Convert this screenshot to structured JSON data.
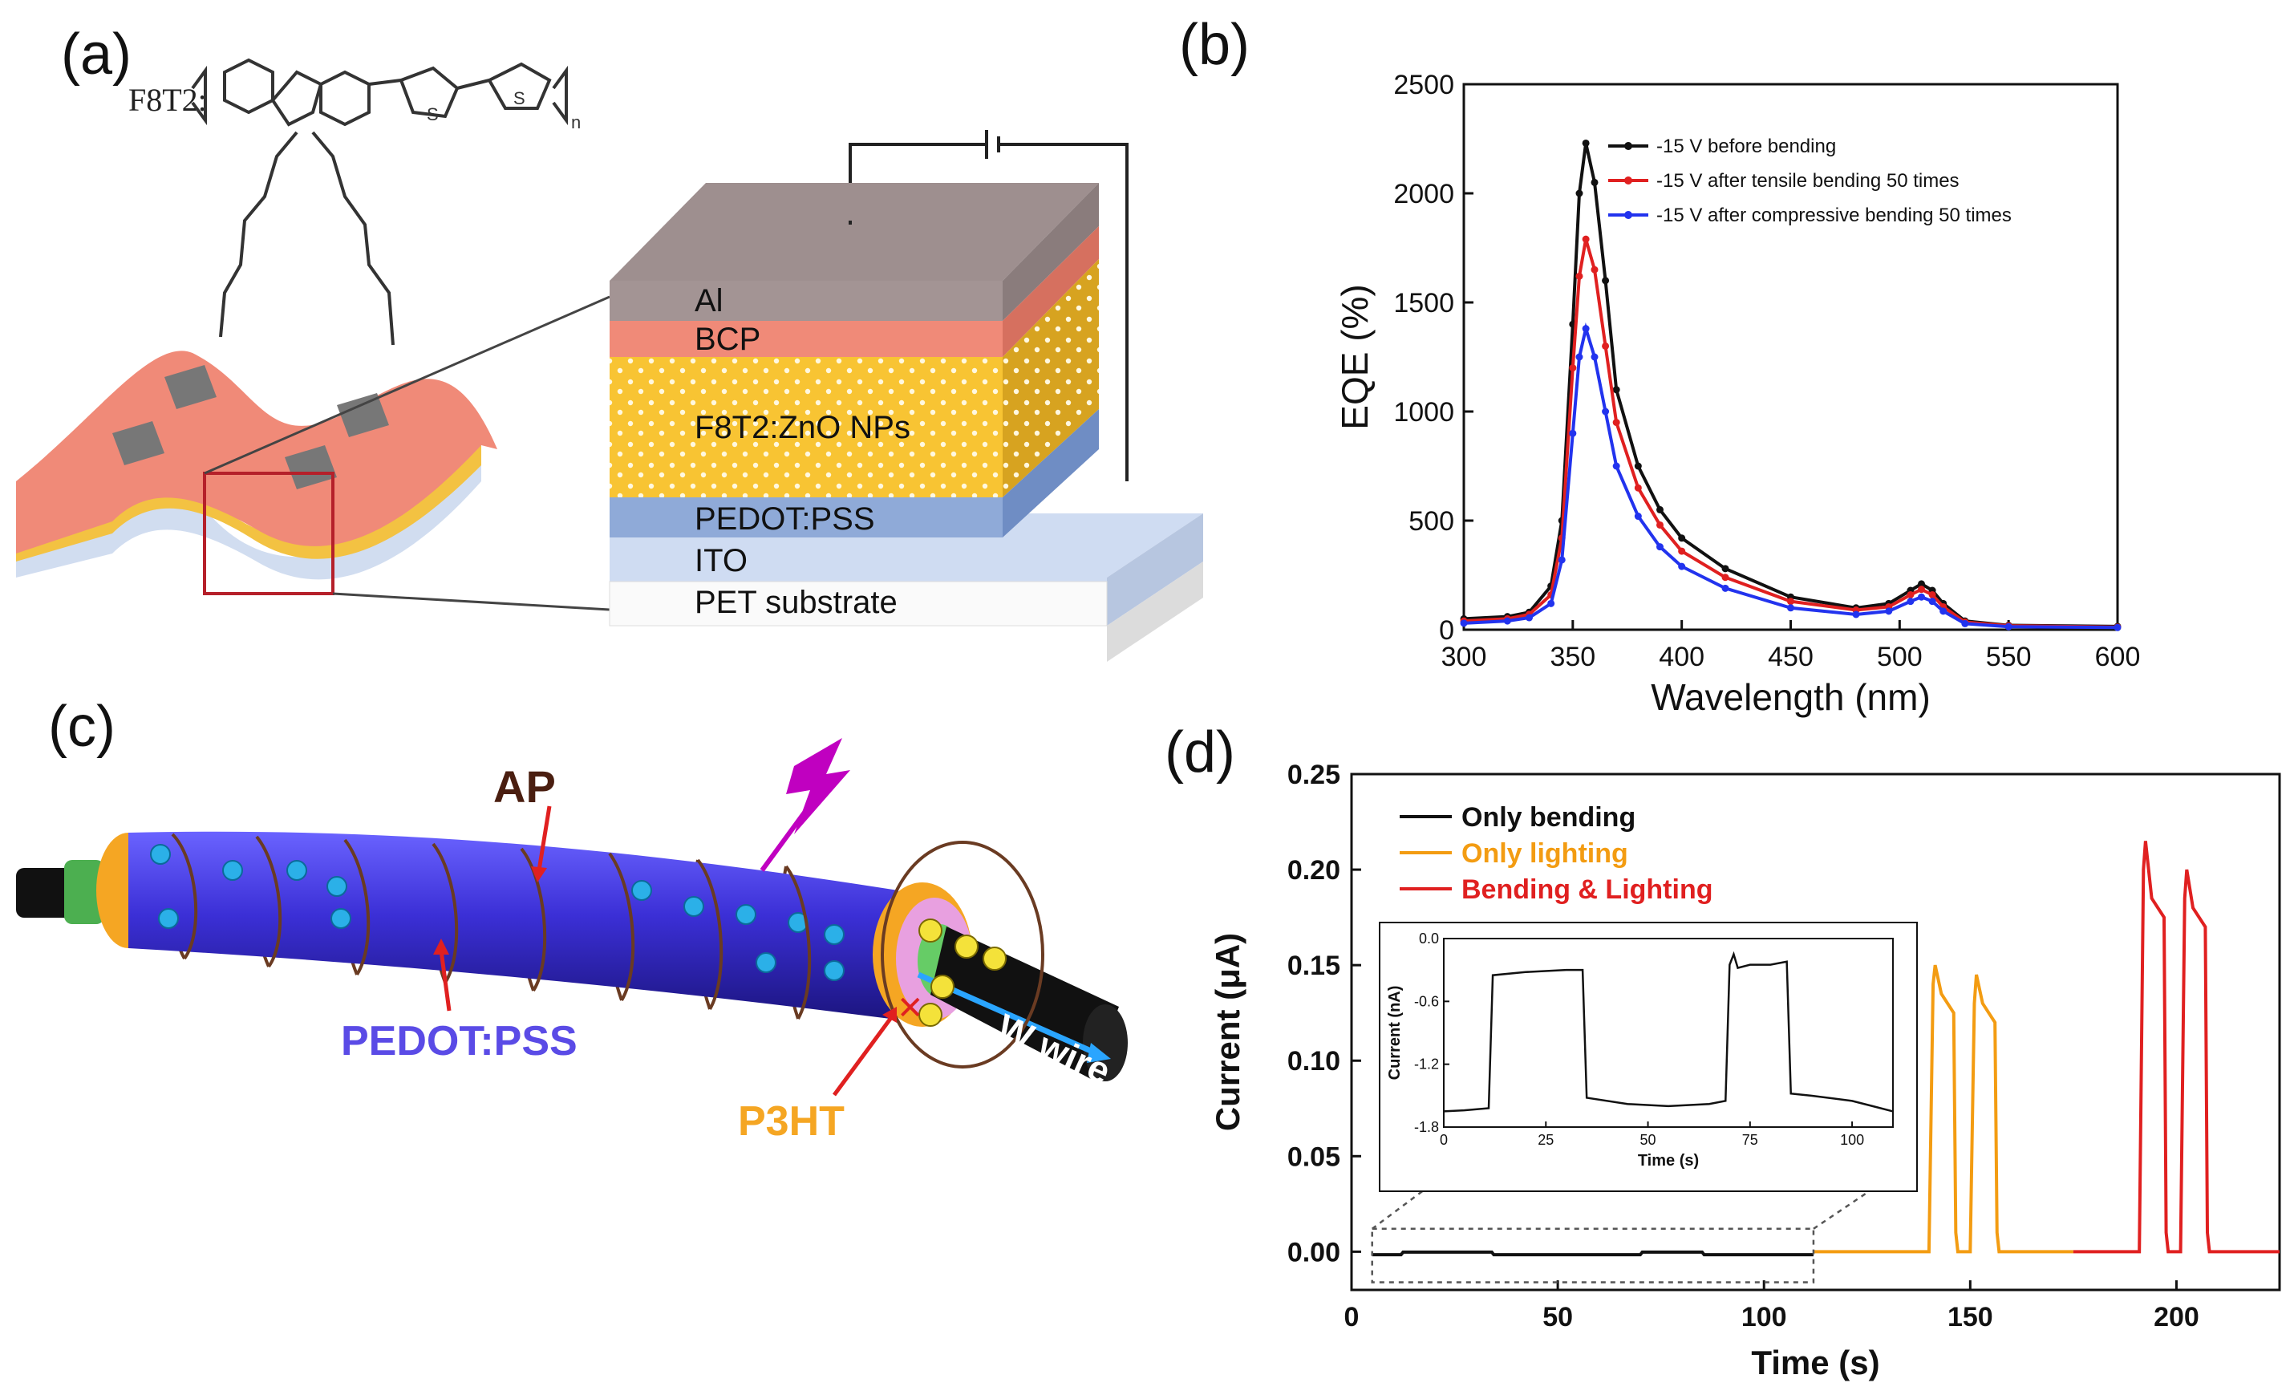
{
  "panel_a": {
    "label": "(a)",
    "polymer": "F8T2:",
    "repeat_sub": "n",
    "layers": [
      "Al",
      "BCP",
      "F8T2:ZnO NPs",
      "PEDOT:PSS",
      "ITO",
      "PET substrate"
    ]
  },
  "panel_b": {
    "label": "(b)",
    "colors": {
      "black": "#111111",
      "red": "#e02020",
      "blue": "#2233ee"
    }
  },
  "panel_c": {
    "label": "(c)",
    "labels": {
      "ap": "AP",
      "pedot": "PEDOT:PSS",
      "p3ht": "P3HT",
      "wire": "W wire"
    },
    "colors": {
      "tube": "#3b2fd6",
      "p3ht": "#f5a623",
      "coil": "#6a3b22"
    }
  },
  "panel_d": {
    "label": "(d)",
    "colors": {
      "black": "#111111",
      "orange": "#f39c12",
      "red": "#e02020"
    }
  },
  "chart_data": [
    {
      "type": "line",
      "panel": "b",
      "xlabel": "Wavelength (nm)",
      "ylabel": "EQE (%)",
      "xlim": [
        300,
        600
      ],
      "ylim": [
        0,
        2500
      ],
      "xticks": [
        300,
        350,
        400,
        450,
        500,
        550,
        600
      ],
      "yticks": [
        0,
        500,
        1000,
        1500,
        2000,
        2500
      ],
      "series": [
        {
          "name": "-15 V before bending",
          "color": "#111111",
          "x": [
            300,
            320,
            330,
            340,
            345,
            350,
            353,
            356,
            360,
            365,
            370,
            380,
            390,
            400,
            420,
            450,
            480,
            495,
            505,
            510,
            515,
            520,
            530,
            550,
            600
          ],
          "y": [
            50,
            60,
            80,
            200,
            500,
            1400,
            2000,
            2230,
            2050,
            1600,
            1100,
            750,
            550,
            420,
            280,
            150,
            100,
            120,
            180,
            210,
            180,
            120,
            40,
            20,
            15
          ]
        },
        {
          "name": "-15 V after tensile bending 50 times",
          "color": "#e02020",
          "x": [
            300,
            320,
            330,
            340,
            345,
            350,
            353,
            356,
            360,
            365,
            370,
            380,
            390,
            400,
            420,
            450,
            480,
            495,
            505,
            510,
            515,
            520,
            530,
            550,
            600
          ],
          "y": [
            40,
            50,
            70,
            160,
            420,
            1200,
            1620,
            1790,
            1650,
            1300,
            950,
            650,
            480,
            360,
            240,
            130,
            90,
            105,
            160,
            185,
            160,
            105,
            35,
            18,
            12
          ]
        },
        {
          "name": "-15 V after compressive bending 50 times",
          "color": "#2233ee",
          "x": [
            300,
            320,
            330,
            340,
            345,
            350,
            353,
            356,
            360,
            365,
            370,
            380,
            390,
            400,
            420,
            450,
            480,
            495,
            505,
            510,
            515,
            520,
            530,
            550,
            600
          ],
          "y": [
            30,
            40,
            55,
            120,
            320,
            900,
            1250,
            1380,
            1250,
            1000,
            750,
            520,
            380,
            290,
            190,
            100,
            70,
            85,
            130,
            150,
            130,
            85,
            28,
            14,
            10
          ]
        }
      ]
    },
    {
      "type": "line",
      "panel": "d",
      "xlabel": "Time (s)",
      "ylabel": "Current (μA)",
      "xlim": [
        0,
        225
      ],
      "ylim": [
        -0.02,
        0.25
      ],
      "xticks": [
        0,
        50,
        100,
        150,
        200
      ],
      "yticks": [
        0.0,
        0.05,
        0.1,
        0.15,
        0.2,
        0.25
      ],
      "series": [
        {
          "name": "Only bending",
          "color": "#111111",
          "x": [
            5,
            12,
            12.5,
            34,
            34.5,
            70,
            70.5,
            85,
            85.5,
            112
          ],
          "y": [
            -0.0016,
            -0.0016,
            -0.0002,
            -0.0002,
            -0.0016,
            -0.0016,
            -0.0002,
            -0.0002,
            -0.0016,
            -0.0016
          ]
        },
        {
          "name": "Only lighting",
          "color": "#f39c12",
          "x": [
            112,
            140,
            141,
            141.5,
            143,
            146,
            146.5,
            147,
            150,
            151,
            151.5,
            153,
            156,
            156.5,
            157,
            175
          ],
          "y": [
            0.0,
            0.0,
            0.14,
            0.15,
            0.135,
            0.125,
            0.01,
            0.0,
            0.0,
            0.13,
            0.145,
            0.13,
            0.12,
            0.01,
            0.0,
            0.0
          ]
        },
        {
          "name": "Bending & Lighting",
          "color": "#e02020",
          "x": [
            175,
            191,
            192,
            192.5,
            194,
            197,
            197.5,
            198,
            201,
            202,
            202.5,
            204,
            207,
            207.5,
            208,
            225
          ],
          "y": [
            0.0,
            0.0,
            0.2,
            0.215,
            0.185,
            0.175,
            0.01,
            0.0,
            0.0,
            0.185,
            0.2,
            0.18,
            0.17,
            0.01,
            0.0,
            0.0
          ]
        }
      ],
      "inset": {
        "type": "line",
        "xlabel": "Time (s)",
        "ylabel": "Current (nA)",
        "xlim": [
          0,
          110
        ],
        "ylim": [
          -1.8,
          0.0
        ],
        "xticks": [
          0,
          25,
          50,
          75,
          100
        ],
        "yticks": [
          0.0,
          -0.6,
          -1.2,
          -1.8
        ],
        "x": [
          0,
          5,
          11,
          12,
          20,
          30,
          34,
          35,
          45,
          55,
          65,
          69,
          70,
          71,
          72,
          75,
          80,
          84,
          85,
          90,
          100,
          105,
          110
        ],
        "y": [
          -1.65,
          -1.64,
          -1.62,
          -0.35,
          -0.32,
          -0.3,
          -0.3,
          -1.52,
          -1.58,
          -1.6,
          -1.58,
          -1.55,
          -0.25,
          -0.15,
          -0.28,
          -0.25,
          -0.25,
          -0.22,
          -1.48,
          -1.5,
          -1.55,
          -1.6,
          -1.65
        ]
      }
    }
  ]
}
